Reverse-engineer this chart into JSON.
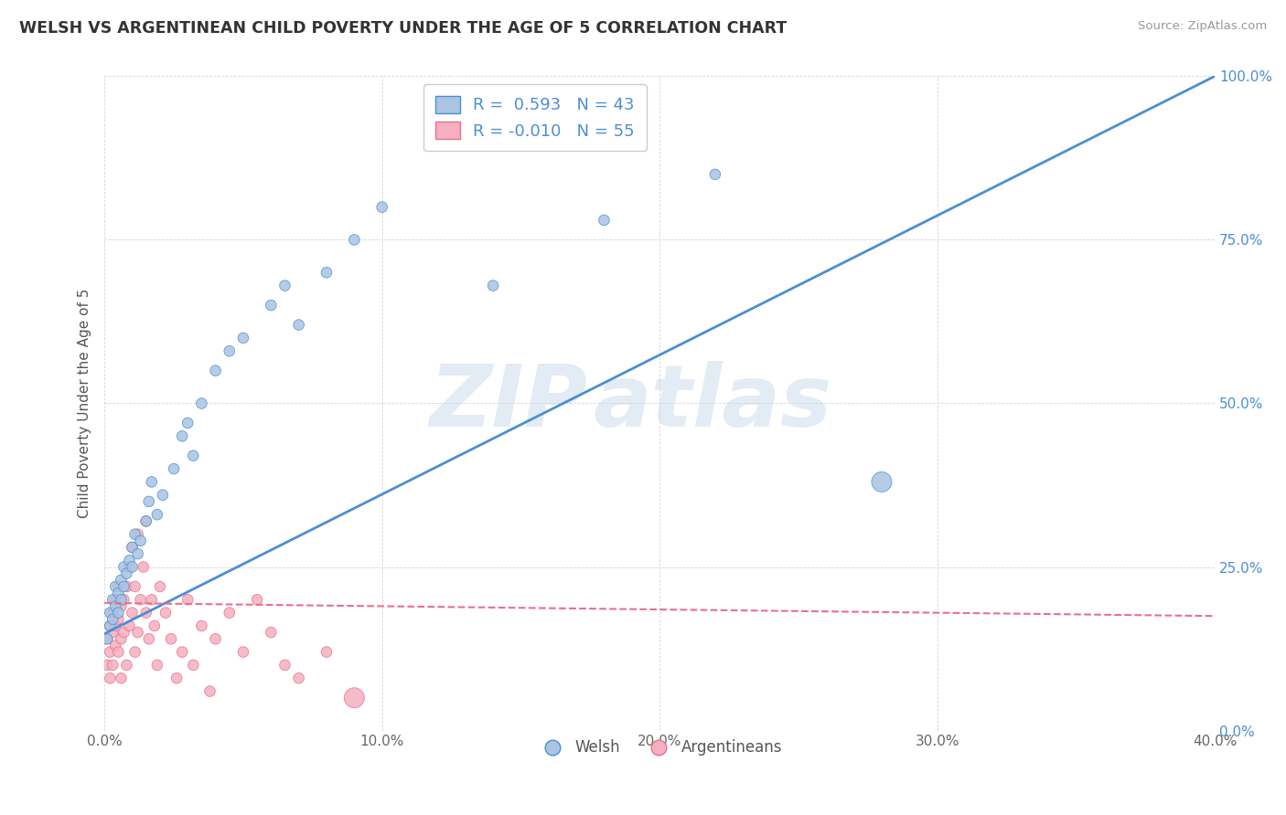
{
  "title": "WELSH VS ARGENTINEAN CHILD POVERTY UNDER THE AGE OF 5 CORRELATION CHART",
  "source": "Source: ZipAtlas.com",
  "ylabel": "Child Poverty Under the Age of 5",
  "xlim": [
    0.0,
    0.4
  ],
  "ylim": [
    0.0,
    1.0
  ],
  "xticks": [
    0.0,
    0.1,
    0.2,
    0.3,
    0.4
  ],
  "xtick_labels": [
    "0.0%",
    "10.0%",
    "20.0%",
    "30.0%",
    "40.0%"
  ],
  "yticks": [
    0.0,
    0.25,
    0.5,
    0.75,
    1.0
  ],
  "ytick_labels": [
    "0.0%",
    "25.0%",
    "50.0%",
    "75.0%",
    "100.0%"
  ],
  "welsh_R": 0.593,
  "welsh_N": 43,
  "arg_R": -0.01,
  "arg_N": 55,
  "welsh_color": "#aac4e2",
  "arg_color": "#f5afc0",
  "welsh_line_color": "#4a8fd4",
  "arg_line_color": "#e8708a",
  "watermark_zip": "ZIP",
  "watermark_atlas": "atlas",
  "legend_labels": [
    "Welsh",
    "Argentineans"
  ],
  "welsh_line_x0": 0.0,
  "welsh_line_y0": 0.148,
  "welsh_line_x1": 0.4,
  "welsh_line_y1": 1.0,
  "arg_line_x0": 0.0,
  "arg_line_y0": 0.195,
  "arg_line_x1": 0.4,
  "arg_line_y1": 0.175,
  "welsh_scatter_x": [
    0.001,
    0.002,
    0.002,
    0.003,
    0.003,
    0.004,
    0.004,
    0.005,
    0.005,
    0.006,
    0.006,
    0.007,
    0.007,
    0.008,
    0.009,
    0.01,
    0.01,
    0.011,
    0.012,
    0.013,
    0.015,
    0.016,
    0.017,
    0.019,
    0.021,
    0.025,
    0.028,
    0.03,
    0.032,
    0.035,
    0.04,
    0.045,
    0.05,
    0.06,
    0.065,
    0.07,
    0.08,
    0.09,
    0.1,
    0.14,
    0.18,
    0.22,
    0.28
  ],
  "welsh_scatter_y": [
    0.14,
    0.16,
    0.18,
    0.2,
    0.17,
    0.19,
    0.22,
    0.18,
    0.21,
    0.2,
    0.23,
    0.22,
    0.25,
    0.24,
    0.26,
    0.28,
    0.25,
    0.3,
    0.27,
    0.29,
    0.32,
    0.35,
    0.38,
    0.33,
    0.36,
    0.4,
    0.45,
    0.47,
    0.42,
    0.5,
    0.55,
    0.58,
    0.6,
    0.65,
    0.68,
    0.62,
    0.7,
    0.75,
    0.8,
    0.68,
    0.78,
    0.85,
    0.38
  ],
  "welsh_scatter_sizes": [
    70,
    70,
    70,
    70,
    70,
    70,
    70,
    70,
    70,
    70,
    70,
    70,
    70,
    70,
    70,
    70,
    70,
    70,
    70,
    70,
    70,
    70,
    70,
    70,
    70,
    70,
    70,
    70,
    70,
    70,
    70,
    70,
    70,
    70,
    70,
    70,
    70,
    70,
    70,
    70,
    70,
    70,
    250
  ],
  "arg_scatter_x": [
    0.001,
    0.001,
    0.002,
    0.002,
    0.002,
    0.003,
    0.003,
    0.003,
    0.004,
    0.004,
    0.004,
    0.005,
    0.005,
    0.005,
    0.006,
    0.006,
    0.006,
    0.007,
    0.007,
    0.008,
    0.008,
    0.009,
    0.009,
    0.01,
    0.01,
    0.011,
    0.011,
    0.012,
    0.012,
    0.013,
    0.014,
    0.015,
    0.015,
    0.016,
    0.017,
    0.018,
    0.019,
    0.02,
    0.022,
    0.024,
    0.026,
    0.028,
    0.03,
    0.032,
    0.035,
    0.038,
    0.04,
    0.045,
    0.05,
    0.055,
    0.06,
    0.065,
    0.07,
    0.08,
    0.09
  ],
  "arg_scatter_y": [
    0.14,
    0.1,
    0.12,
    0.16,
    0.08,
    0.15,
    0.1,
    0.18,
    0.13,
    0.16,
    0.2,
    0.12,
    0.17,
    0.22,
    0.14,
    0.19,
    0.08,
    0.2,
    0.15,
    0.22,
    0.1,
    0.25,
    0.16,
    0.18,
    0.28,
    0.12,
    0.22,
    0.15,
    0.3,
    0.2,
    0.25,
    0.18,
    0.32,
    0.14,
    0.2,
    0.16,
    0.1,
    0.22,
    0.18,
    0.14,
    0.08,
    0.12,
    0.2,
    0.1,
    0.16,
    0.06,
    0.14,
    0.18,
    0.12,
    0.2,
    0.15,
    0.1,
    0.08,
    0.12,
    0.05
  ],
  "arg_scatter_sizes": [
    70,
    70,
    70,
    70,
    70,
    70,
    70,
    70,
    70,
    70,
    70,
    70,
    70,
    70,
    70,
    70,
    70,
    70,
    70,
    70,
    70,
    70,
    70,
    70,
    70,
    70,
    70,
    70,
    70,
    70,
    70,
    70,
    70,
    70,
    70,
    70,
    70,
    70,
    70,
    70,
    70,
    70,
    70,
    70,
    70,
    70,
    70,
    70,
    70,
    70,
    70,
    70,
    70,
    70,
    250
  ]
}
